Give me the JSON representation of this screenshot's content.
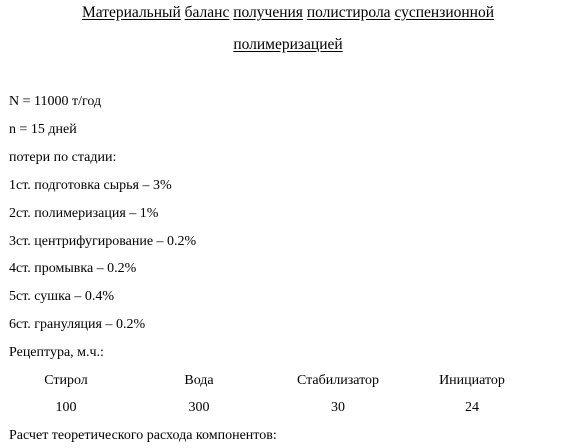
{
  "title": {
    "line1_words": [
      "Материальный",
      "баланс",
      "получения",
      "полистирола",
      "суспензионной"
    ],
    "line2": "полимеризацией"
  },
  "params": {
    "n_capacity": "N = 11000 т/год",
    "n_days": "n = 15 дней",
    "losses_header": "потери по стадии:"
  },
  "stages": [
    "1ст. подготовка сырья – 3%",
    "2ст. полимеризация – 1%",
    "3ст. центрифугирование – 0.2%",
    "4ст. промывка – 0.2%",
    "5ст. сушка – 0.4%",
    "6ст. грануляция – 0.2%"
  ],
  "recipe": {
    "header": "Рецептура, м.ч.:",
    "columns": [
      "Стирол",
      "Вода",
      "Стабилизатор",
      "Инициатор"
    ],
    "values": [
      "100",
      "300",
      "30",
      "24"
    ]
  },
  "footer": "Расчет теоретического расхода компонентов:"
}
